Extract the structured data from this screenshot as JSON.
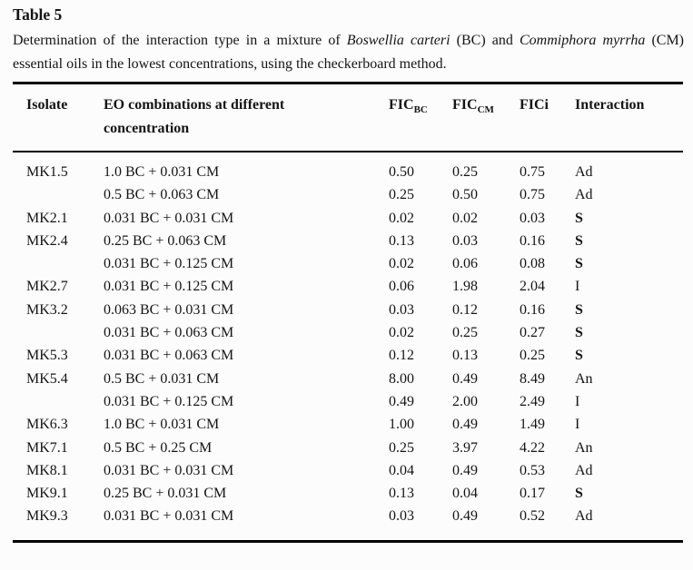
{
  "title": "Table 5",
  "caption": {
    "part1": "Determination of the interaction type in a mixture of ",
    "species1": "Boswellia carteri",
    "part2": " (BC) and ",
    "species2": "Commiphora myrrha",
    "part3": " (CM) essential oils in the lowest concentrations, using the checker­board method."
  },
  "colors": {
    "background": "#fcfcfc",
    "text": "#141414",
    "rule": "#000000"
  },
  "table": {
    "headers": [
      {
        "key": "isolate",
        "text": "Isolate"
      },
      {
        "key": "combination",
        "text": "EO combinations at different",
        "line2": "concentration"
      },
      {
        "key": "fic-bc",
        "text": "FIC",
        "sub": "BC"
      },
      {
        "key": "fic-cm",
        "text": "FIC",
        "sub": "CM"
      },
      {
        "key": "fici",
        "text": "FICi"
      },
      {
        "key": "interaction",
        "text": "Interaction"
      }
    ],
    "rows": [
      [
        "MK1.5",
        "1.0 BC + 0.031 CM",
        "0.50",
        "0.25",
        "0.75",
        "Ad"
      ],
      [
        "",
        "0.5 BC + 0.063 CM",
        "0.25",
        "0.50",
        "0.75",
        "Ad"
      ],
      [
        "MK2.1",
        "0.031 BC + 0.031 CM",
        "0.02",
        "0.02",
        "0.03",
        "S"
      ],
      [
        "MK2.4",
        "0.25 BC + 0.063 CM",
        "0.13",
        "0.03",
        "0.16",
        "S"
      ],
      [
        "",
        "0.031 BC + 0.125 CM",
        "0.02",
        "0.06",
        "0.08",
        "S"
      ],
      [
        "MK2.7",
        "0.031 BC + 0.125 CM",
        "0.06",
        "1.98",
        "2.04",
        "I"
      ],
      [
        "MK3.2",
        "0.063 BC + 0.031 CM",
        "0.03",
        "0.12",
        "0.16",
        "S"
      ],
      [
        "",
        "0.031 BC + 0.063 CM",
        "0.02",
        "0.25",
        "0.27",
        "S"
      ],
      [
        "MK5.3",
        "0.031 BC + 0.063 CM",
        "0.12",
        "0.13",
        "0.25",
        "S"
      ],
      [
        "MK5.4",
        "0.5 BC + 0.031 CM",
        "8.00",
        "0.49",
        "8.49",
        "An"
      ],
      [
        "",
        "0.031 BC + 0.125 CM",
        "0.49",
        "2.00",
        "2.49",
        "I"
      ],
      [
        "MK6.3",
        "1.0 BC + 0.031 CM",
        "1.00",
        "0.49",
        "1.49",
        "I"
      ],
      [
        "MK7.1",
        "0.5 BC + 0.25 CM",
        "0.25",
        "3.97",
        "4.22",
        "An"
      ],
      [
        "MK8.1",
        "0.031 BC + 0.031 CM",
        "0.04",
        "0.49",
        "0.53",
        "Ad"
      ],
      [
        "MK9.1",
        "0.25 BC + 0.031 CM",
        "0.13",
        "0.04",
        "0.17",
        "S"
      ],
      [
        "MK9.3",
        "0.031 BC + 0.031 CM",
        "0.03",
        "0.49",
        "0.52",
        "Ad"
      ]
    ],
    "bold_interaction_value": "S"
  }
}
